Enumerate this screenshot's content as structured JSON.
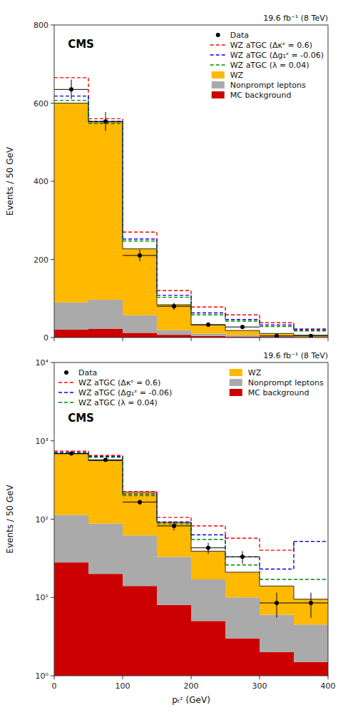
{
  "chart_data": [
    {
      "type": "histogram",
      "stacked": true,
      "bins": [
        0,
        50,
        100,
        150,
        200,
        250,
        300,
        350,
        400
      ],
      "series": [
        {
          "name": "Data",
          "type": "scatter",
          "marker": "circle",
          "color": "#000000",
          "x": [
            25,
            75,
            125,
            175,
            225,
            275,
            325,
            375
          ],
          "values": [
            635,
            553,
            210,
            80,
            33,
            27,
            4,
            4
          ],
          "xerr": [
            25,
            25,
            25,
            25,
            25,
            25,
            25,
            25
          ],
          "yerr": [
            25,
            24,
            15,
            9,
            6,
            5,
            2,
            2
          ]
        },
        {
          "name": "WZ aTGC (Δκᶻ = 0.6)",
          "type": "step",
          "line_style": "dashed",
          "color": "#FF0000",
          "values": [
            665,
            560,
            270,
            120,
            78,
            58,
            38,
            22
          ]
        },
        {
          "name": "WZ aTGC (Δg₁ᶻ = -0.06)",
          "type": "step",
          "line_style": "dashed",
          "color": "#0000EE",
          "values": [
            618,
            553,
            252,
            108,
            63,
            46,
            32,
            20
          ]
        },
        {
          "name": "WZ aTGC (λ = 0.04)",
          "type": "step",
          "line_style": "dashed",
          "color": "#008800",
          "values": [
            607,
            548,
            247,
            103,
            58,
            42,
            28,
            17
          ]
        },
        {
          "name": "WZ",
          "type": "bar",
          "color": "#FFB900",
          "values": [
            510,
            455,
            170,
            65,
            22,
            12,
            7,
            4
          ]
        },
        {
          "name": "Nonprompt leptons",
          "type": "bar",
          "color": "#AAAAAA",
          "values": [
            70,
            75,
            45,
            12,
            6,
            4,
            2,
            1
          ]
        },
        {
          "name": "MC background",
          "type": "bar",
          "color": "#CC0000",
          "values": [
            20,
            22,
            12,
            7,
            4,
            2,
            1.5,
            1
          ]
        }
      ],
      "xlim": [
        0,
        400
      ],
      "xticks": [
        0,
        100,
        200,
        300,
        400
      ],
      "ylim": [
        0,
        800
      ],
      "yticks": [
        0,
        200,
        400,
        600,
        800
      ],
      "ylabel": "Events / 50 GeV",
      "annotations": [
        "CMS",
        "19.6 fb⁻¹ (8 TeV)"
      ],
      "legend": "upper right",
      "tick_labels": "y",
      "grid": false
    },
    {
      "type": "histogram",
      "stacked": true,
      "log": "y",
      "bins": [
        0,
        50,
        100,
        150,
        200,
        250,
        300,
        350,
        400
      ],
      "series": [
        {
          "name": "Data",
          "type": "scatter",
          "marker": "circle",
          "color": "#000000",
          "x": [
            25,
            75,
            125,
            175,
            225,
            275,
            325,
            375
          ],
          "values": [
            690,
            570,
            165,
            82,
            43,
            33,
            8.5,
            8.5
          ],
          "xerr": [
            25,
            25,
            25,
            25,
            25,
            25,
            25,
            25
          ],
          "yerr": [
            28,
            25,
            13,
            10,
            7,
            6,
            3,
            3
          ]
        },
        {
          "name": "WZ aTGC (Δκᶻ = 0.6)",
          "type": "step",
          "line_style": "dashed",
          "color": "#FF0000",
          "values": [
            740,
            650,
            225,
            105,
            82,
            57,
            40,
            52
          ]
        },
        {
          "name": "WZ aTGC (Δg₁ᶻ = -0.06)",
          "type": "step",
          "line_style": "dashed",
          "color": "#0000EE",
          "values": [
            710,
            630,
            210,
            92,
            63,
            33,
            23,
            52
          ]
        },
        {
          "name": "WZ aTGC (λ = 0.04)",
          "type": "step",
          "line_style": "dashed",
          "color": "#008800",
          "values": [
            695,
            618,
            200,
            87,
            55,
            26,
            17,
            17
          ]
        },
        {
          "name": "WZ",
          "type": "bar",
          "color": "#FFB900",
          "values": [
            570,
            470,
            160,
            58,
            22,
            11,
            8,
            5
          ]
        },
        {
          "name": "Nonprompt leptons",
          "type": "bar",
          "color": "#AAAAAA",
          "values": [
            85,
            68,
            48,
            25,
            12,
            7,
            4,
            3
          ]
        },
        {
          "name": "MC background",
          "type": "bar",
          "color": "#CC0000",
          "values": [
            28,
            20,
            14,
            8,
            5,
            3,
            2,
            1.5
          ]
        }
      ],
      "xlim": [
        0,
        400
      ],
      "xticks": [
        0,
        100,
        200,
        300,
        400
      ],
      "ylim": [
        1,
        10000
      ],
      "yticks": [
        {
          "value": 1,
          "label": "10⁰"
        },
        {
          "value": 10,
          "label": "10¹"
        },
        {
          "value": 100,
          "label": "10²"
        },
        {
          "value": 1000,
          "label": "10³"
        },
        {
          "value": 10000,
          "label": "10⁴"
        }
      ],
      "ylabel": "Events / 50 GeV",
      "xlabel": "pₜᶻ (GeV)",
      "annotations": [
        "CMS",
        "19.6 fb⁻¹ (8 TeV)"
      ],
      "legend": "top",
      "grid": false
    }
  ]
}
